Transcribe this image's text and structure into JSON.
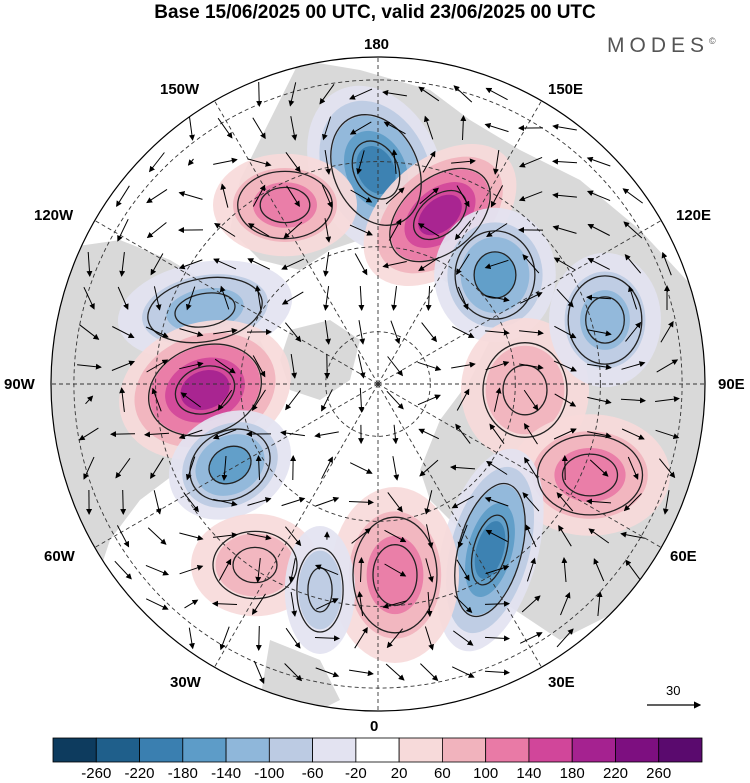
{
  "title": "Base 15/06/2025 00 UTC, valid 23/06/2025 00 UTC",
  "brand": "MODES",
  "brand_mark": "©",
  "longitude_labels": {
    "top": "180",
    "bottom": "0",
    "left": "90W",
    "right": "90E",
    "w150": "150W",
    "e150": "150E",
    "w120": "120W",
    "e120": "120E",
    "w60": "60W",
    "e60": "60E",
    "w30": "30W",
    "e30": "30E"
  },
  "vector_reference": "30",
  "colorbar": {
    "labels": [
      "-260",
      "-220",
      "-180",
      "-140",
      "-100",
      "-60",
      "-20",
      "20",
      "60",
      "100",
      "140",
      "180",
      "220",
      "260"
    ],
    "colors": [
      "#0d3b5e",
      "#1f5f8b",
      "#3a7fb0",
      "#5d9cc8",
      "#8fb7da",
      "#bccbe3",
      "#e3e3f1",
      "#ffffff",
      "#f7dada",
      "#f1b3bd",
      "#e97aa6",
      "#d1469a",
      "#a52290",
      "#7d0f80",
      "#5a0a6e"
    ]
  },
  "map_colors": {
    "land": "#d9d9d9",
    "background": "#ffffff"
  },
  "anomaly_centers": [
    {
      "id": "low-1",
      "value": -220
    },
    {
      "id": "high-1",
      "value": 200
    },
    {
      "id": "high-2",
      "value": 120
    },
    {
      "id": "low-2",
      "value": -180
    },
    {
      "id": "low-3",
      "value": -140
    },
    {
      "id": "high-3",
      "value": 220
    },
    {
      "id": "low-4",
      "value": -180
    },
    {
      "id": "high-4",
      "value": 100
    },
    {
      "id": "low-5",
      "value": -120
    },
    {
      "id": "high-5",
      "value": 120
    },
    {
      "id": "low-6",
      "value": -200
    },
    {
      "id": "high-6",
      "value": 120
    },
    {
      "id": "high-7",
      "value": 100
    },
    {
      "id": "low-7",
      "value": -100
    }
  ]
}
